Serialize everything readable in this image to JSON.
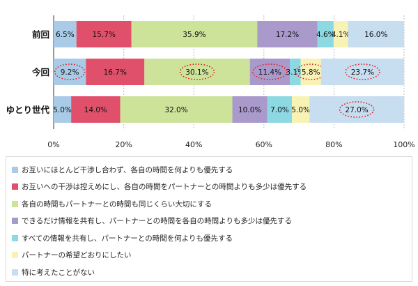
{
  "chart_data": {
    "type": "bar",
    "orientation": "horizontal",
    "stacked": true,
    "categories": [
      "前回",
      "今回",
      "ゆとり世代"
    ],
    "series": [
      {
        "name": "お互いにほとんど干渉し合わず、各自の時間を何よりも優先する",
        "color": "#a9cbe8",
        "values": [
          6.5,
          9.2,
          5.0
        ]
      },
      {
        "name": "お互いへの干渉は控えめにし、各自の時間をパートナーとの時間よりも多少は優先する",
        "color": "#e0506b",
        "values": [
          15.7,
          16.7,
          14.0
        ]
      },
      {
        "name": "各自の時間もパートナーとの時間も同じくらい大切にする",
        "color": "#cde39a",
        "values": [
          35.9,
          30.1,
          32.0
        ]
      },
      {
        "name": "できるだけ情報を共有し、パートナーとの時間を各自の時間よりも多少は優先する",
        "color": "#a99acb",
        "values": [
          17.2,
          11.4,
          10.0
        ]
      },
      {
        "name": "すべての情報を共有し、パートナーとの時間を何よりも優先する",
        "color": "#8dd9e3",
        "values": [
          4.6,
          3.1,
          7.0
        ]
      },
      {
        "name": "パートナーの希望どおりにしたい",
        "color": "#f8f3b5",
        "values": [
          4.1,
          5.8,
          5.0
        ]
      },
      {
        "name": "特に考えたことがない",
        "color": "#c7ddf0",
        "values": [
          16.0,
          23.7,
          27.0
        ]
      }
    ],
    "value_labels": [
      [
        "6.5%",
        "15.7%",
        "35.9%",
        "17.2%",
        "4.6%",
        "4.1%",
        "16.0%"
      ],
      [
        "9.2%",
        "16.7%",
        "30.1%",
        "11.4%",
        "3.1%",
        "5.8%",
        "23.7%"
      ],
      [
        "5.0%",
        "14.0%",
        "32.0%",
        "10.0%",
        "7.0%",
        "5.0%",
        "27.0%"
      ]
    ],
    "highlighted": [
      [
        1,
        0
      ],
      [
        1,
        2
      ],
      [
        1,
        3
      ],
      [
        1,
        5
      ],
      [
        1,
        6
      ],
      [
        2,
        6
      ]
    ],
    "x_ticks": [
      "0%",
      "20%",
      "40%",
      "60%",
      "80%",
      "100%"
    ],
    "xlim": [
      0,
      100
    ],
    "grid": "vertical dotted",
    "legend_position": "bottom"
  }
}
